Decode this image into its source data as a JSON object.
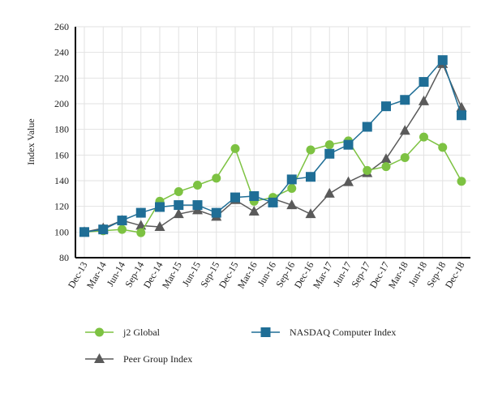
{
  "chart_data": {
    "type": "line",
    "xlabel": "",
    "ylabel": "Index Value",
    "ylim": [
      80,
      260
    ],
    "yticks": [
      80,
      100,
      120,
      140,
      160,
      180,
      200,
      220,
      240,
      260
    ],
    "grid": true,
    "legend_position": "bottom",
    "categories": [
      "Dec-13",
      "Mar-14",
      "Jun-14",
      "Sep-14",
      "Dec-14",
      "Mar-15",
      "Jun-15",
      "Sep-15",
      "Dec-15",
      "Mar-16",
      "Jun-16",
      "Sep-16",
      "Dec-16",
      "Mar-17",
      "Jun-17",
      "Sep-17",
      "Dec-17",
      "Mar-18",
      "Jun-18",
      "Sep-18",
      "Dec-18"
    ],
    "series": [
      {
        "name": "j2 Global",
        "color": "#7dc242",
        "marker": "circle",
        "values": [
          100,
          101,
          102,
          99.5,
          124,
          131.5,
          136.5,
          142,
          165,
          124,
          127,
          134,
          164,
          168,
          171,
          148,
          151,
          158,
          174,
          166,
          139.5
        ]
      },
      {
        "name": "NASDAQ Computer Index",
        "color": "#1f6e96",
        "marker": "square",
        "values": [
          100,
          102,
          109,
          115,
          119.5,
          121,
          121,
          115,
          127,
          128,
          123,
          141,
          143,
          161,
          168,
          182,
          198,
          203,
          217,
          234,
          191
        ]
      },
      {
        "name": "Peer Group Index",
        "color": "#5a5a5a",
        "marker": "triangle",
        "values": [
          100,
          103,
          109,
          105,
          104,
          114,
          117,
          112,
          125,
          116,
          126,
          121,
          114,
          130,
          139,
          146,
          157,
          179,
          202,
          231,
          197
        ]
      }
    ]
  }
}
